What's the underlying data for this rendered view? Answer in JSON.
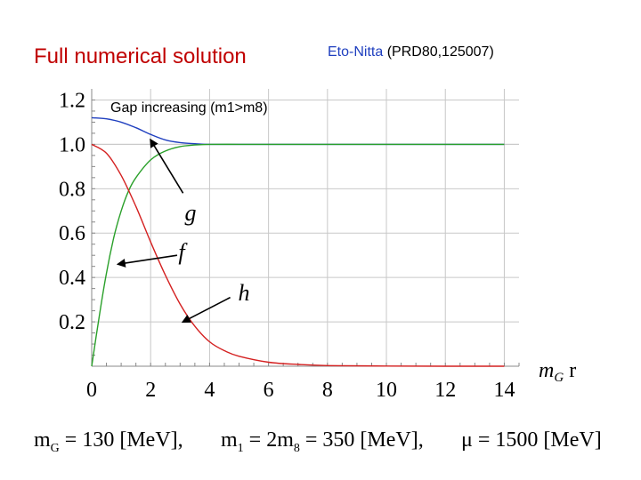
{
  "title": "Full numerical solution",
  "reference": {
    "authors": "Eto-Nitta",
    "citation": "(PRD80,125007)"
  },
  "annotation": "Gap increasing (m1>m8)",
  "parameters": [
    "m_G = 130 [MeV],",
    "m_1 = 2m_8 = 350 [MeV],",
    "μ = 1500 [MeV]"
  ],
  "chart_data": {
    "type": "line",
    "xlabel": "m_G r",
    "ylabel": "",
    "xlim": [
      0,
      14.5
    ],
    "ylim": [
      0,
      1.25
    ],
    "x_ticks": [
      0,
      2,
      4,
      6,
      8,
      10,
      12,
      14
    ],
    "y_ticks": [
      0.2,
      0.4,
      0.6,
      0.8,
      1.0,
      1.2
    ],
    "x_tick_labels": [
      "0",
      "2",
      "4",
      "6",
      "8",
      "10",
      "12",
      "14"
    ],
    "y_tick_labels": [
      "0.2",
      "0.4",
      "0.6",
      "0.8",
      "1.0",
      "1.2"
    ],
    "grid": true,
    "colors": {
      "g": "#1f3fbf",
      "f": "#2aa02a",
      "h": "#d42020",
      "arrow": "#000000"
    },
    "series": [
      {
        "name": "g",
        "x": [
          0,
          0.5,
          1,
          1.5,
          2,
          2.5,
          3,
          3.5,
          4,
          5,
          6,
          8,
          10,
          12,
          14
        ],
        "values": [
          1.12,
          1.115,
          1.1,
          1.075,
          1.045,
          1.02,
          1.008,
          1.003,
          1.0,
          1.0,
          1.0,
          1.0,
          1.0,
          1.0,
          1.0
        ]
      },
      {
        "name": "f",
        "x": [
          0,
          0.25,
          0.5,
          0.75,
          1,
          1.25,
          1.5,
          2,
          2.5,
          3,
          3.5,
          4,
          5,
          6,
          8,
          10,
          12,
          14
        ],
        "values": [
          0,
          0.22,
          0.42,
          0.58,
          0.7,
          0.79,
          0.85,
          0.93,
          0.97,
          0.99,
          0.997,
          1.0,
          1.0,
          1.0,
          1.0,
          1.0,
          1.0,
          1.0
        ]
      },
      {
        "name": "h",
        "x": [
          0,
          0.5,
          1,
          1.5,
          2,
          2.5,
          3,
          3.5,
          4,
          4.5,
          5,
          6,
          7,
          8,
          10,
          12,
          14
        ],
        "values": [
          1.0,
          0.96,
          0.86,
          0.72,
          0.56,
          0.41,
          0.28,
          0.18,
          0.11,
          0.07,
          0.045,
          0.018,
          0.008,
          0.003,
          0.001,
          0.0,
          0.0
        ]
      }
    ],
    "annotations": [
      {
        "label": "g",
        "from": [
          3.1,
          0.78
        ],
        "to": [
          2.0,
          1.02
        ]
      },
      {
        "label": "f",
        "from": [
          2.9,
          0.5
        ],
        "to": [
          0.9,
          0.46
        ]
      },
      {
        "label": "h",
        "from": [
          4.7,
          0.31
        ],
        "to": [
          3.1,
          0.2
        ]
      }
    ]
  }
}
